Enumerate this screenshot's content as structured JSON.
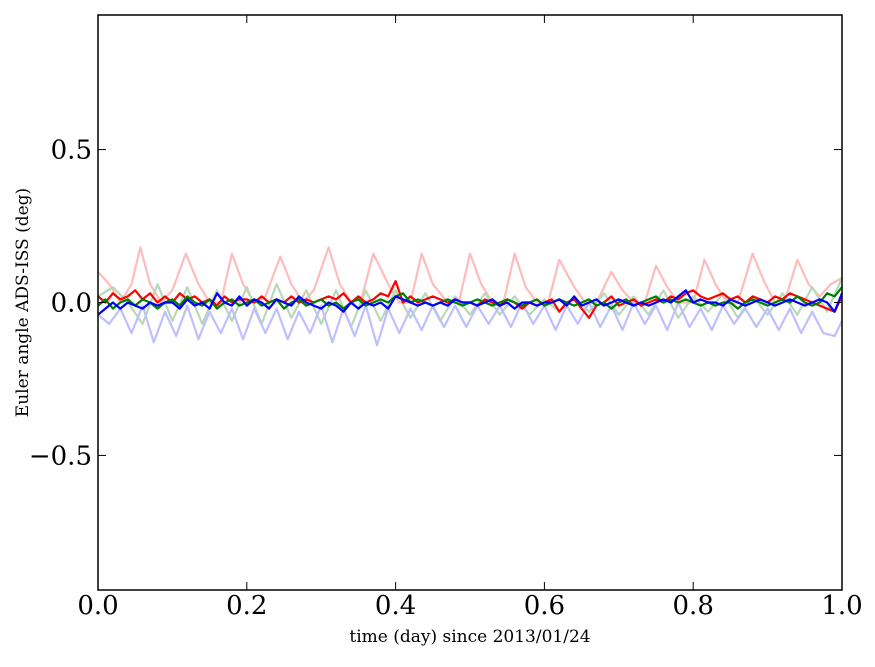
{
  "chart_data": {
    "type": "line",
    "title": "",
    "xlabel": "time (day) since 2013/01/24",
    "ylabel": "Euler angle ADS-ISS (deg)",
    "xlim": [
      0.0,
      1.0
    ],
    "ylim": [
      -0.94,
      0.94
    ],
    "x_ticks": [
      0.0,
      0.2,
      0.4,
      0.6,
      0.8,
      1.0
    ],
    "x_tick_labels": [
      "0.0",
      "0.2",
      "0.4",
      "0.6",
      "0.8",
      "1.0"
    ],
    "y_ticks": [
      -0.5,
      0.0,
      0.5
    ],
    "y_tick_labels": [
      "−0.5",
      "0.0",
      "0.5"
    ],
    "grid": false,
    "legend": "none",
    "series": [
      {
        "color": "#ffbcbc",
        "x": [
          0.0,
          0.015,
          0.03,
          0.045,
          0.057,
          0.07,
          0.085,
          0.1,
          0.118,
          0.135,
          0.15,
          0.165,
          0.18,
          0.195,
          0.21,
          0.225,
          0.245,
          0.26,
          0.275,
          0.29,
          0.31,
          0.325,
          0.34,
          0.355,
          0.37,
          0.39,
          0.405,
          0.42,
          0.435,
          0.45,
          0.47,
          0.485,
          0.5,
          0.515,
          0.53,
          0.545,
          0.56,
          0.575,
          0.59,
          0.605,
          0.62,
          0.64,
          0.655,
          0.67,
          0.69,
          0.705,
          0.72,
          0.735,
          0.75,
          0.765,
          0.78,
          0.8,
          0.815,
          0.83,
          0.845,
          0.86,
          0.88,
          0.895,
          0.91,
          0.925,
          0.94,
          0.955,
          0.97,
          0.985,
          1.0
        ],
        "y": [
          0.1,
          0.06,
          0.0,
          0.06,
          0.18,
          0.06,
          0.0,
          0.04,
          0.16,
          0.06,
          0.0,
          0.0,
          0.16,
          0.06,
          0.0,
          0.02,
          0.15,
          0.06,
          0.0,
          0.04,
          0.18,
          0.06,
          0.0,
          0.02,
          0.16,
          0.06,
          0.0,
          0.0,
          0.16,
          0.06,
          0.0,
          0.0,
          0.16,
          0.06,
          0.0,
          0.0,
          0.16,
          0.05,
          0.0,
          0.0,
          0.14,
          0.05,
          0.0,
          0.0,
          0.1,
          0.04,
          0.0,
          0.0,
          0.12,
          0.05,
          0.0,
          0.0,
          0.14,
          0.06,
          0.0,
          0.0,
          0.16,
          0.07,
          0.0,
          0.02,
          0.14,
          0.06,
          0.02,
          0.06,
          0.08
        ]
      },
      {
        "color": "#b8d8b8",
        "x": [
          0.0,
          0.02,
          0.04,
          0.06,
          0.08,
          0.1,
          0.12,
          0.14,
          0.16,
          0.18,
          0.2,
          0.22,
          0.24,
          0.26,
          0.28,
          0.3,
          0.32,
          0.34,
          0.36,
          0.38,
          0.4,
          0.42,
          0.44,
          0.46,
          0.48,
          0.5,
          0.52,
          0.54,
          0.56,
          0.58,
          0.6,
          0.62,
          0.64,
          0.66,
          0.68,
          0.7,
          0.72,
          0.74,
          0.76,
          0.78,
          0.8,
          0.82,
          0.84,
          0.86,
          0.88,
          0.9,
          0.92,
          0.94,
          0.96,
          0.98,
          1.0
        ],
        "y": [
          0.02,
          0.05,
          0.0,
          -0.07,
          0.06,
          -0.06,
          0.05,
          -0.07,
          0.04,
          -0.06,
          0.05,
          -0.07,
          0.06,
          -0.05,
          0.04,
          -0.07,
          0.04,
          -0.08,
          0.04,
          -0.06,
          0.04,
          -0.05,
          0.03,
          -0.06,
          0.02,
          -0.04,
          0.03,
          -0.04,
          0.02,
          -0.04,
          0.01,
          -0.03,
          0.02,
          -0.03,
          0.03,
          -0.04,
          0.02,
          -0.04,
          0.04,
          -0.05,
          0.02,
          -0.03,
          0.03,
          -0.05,
          0.02,
          -0.04,
          0.03,
          -0.04,
          0.05,
          -0.03,
          0.08
        ]
      },
      {
        "color": "#bfbfff",
        "x": [
          0.0,
          0.015,
          0.03,
          0.045,
          0.06,
          0.075,
          0.09,
          0.105,
          0.12,
          0.135,
          0.15,
          0.165,
          0.18,
          0.195,
          0.21,
          0.225,
          0.24,
          0.255,
          0.27,
          0.285,
          0.3,
          0.315,
          0.33,
          0.345,
          0.36,
          0.375,
          0.39,
          0.405,
          0.42,
          0.435,
          0.45,
          0.465,
          0.48,
          0.495,
          0.51,
          0.525,
          0.54,
          0.555,
          0.57,
          0.585,
          0.6,
          0.615,
          0.63,
          0.645,
          0.66,
          0.675,
          0.69,
          0.705,
          0.72,
          0.735,
          0.75,
          0.765,
          0.78,
          0.795,
          0.81,
          0.825,
          0.84,
          0.855,
          0.87,
          0.885,
          0.9,
          0.915,
          0.93,
          0.945,
          0.96,
          0.975,
          0.99,
          1.0
        ],
        "y": [
          -0.04,
          -0.07,
          -0.02,
          -0.1,
          -0.01,
          -0.13,
          -0.03,
          -0.11,
          -0.01,
          -0.12,
          -0.03,
          -0.1,
          -0.02,
          -0.12,
          -0.02,
          -0.1,
          -0.02,
          -0.12,
          -0.03,
          -0.1,
          -0.01,
          -0.13,
          -0.02,
          -0.11,
          -0.01,
          -0.14,
          -0.02,
          -0.1,
          -0.02,
          -0.09,
          -0.01,
          -0.08,
          -0.01,
          -0.08,
          -0.01,
          -0.07,
          -0.01,
          -0.08,
          0.0,
          -0.07,
          -0.01,
          -0.09,
          -0.01,
          -0.07,
          0.0,
          -0.08,
          -0.01,
          -0.09,
          0.0,
          -0.07,
          -0.01,
          -0.09,
          0.0,
          -0.08,
          -0.02,
          -0.09,
          -0.01,
          -0.07,
          -0.02,
          -0.08,
          -0.02,
          -0.09,
          -0.02,
          -0.1,
          -0.03,
          -0.1,
          -0.11,
          -0.06
        ]
      },
      {
        "color": "#ff0000",
        "x": [
          0.0,
          0.01,
          0.02,
          0.03,
          0.04,
          0.05,
          0.06,
          0.07,
          0.08,
          0.09,
          0.1,
          0.11,
          0.12,
          0.13,
          0.14,
          0.15,
          0.16,
          0.17,
          0.18,
          0.19,
          0.2,
          0.21,
          0.22,
          0.23,
          0.24,
          0.25,
          0.26,
          0.27,
          0.28,
          0.29,
          0.3,
          0.31,
          0.32,
          0.33,
          0.34,
          0.35,
          0.36,
          0.37,
          0.38,
          0.39,
          0.4,
          0.41,
          0.42,
          0.43,
          0.44,
          0.45,
          0.46,
          0.47,
          0.48,
          0.49,
          0.5,
          0.51,
          0.52,
          0.53,
          0.54,
          0.55,
          0.56,
          0.57,
          0.58,
          0.59,
          0.6,
          0.61,
          0.62,
          0.63,
          0.64,
          0.65,
          0.66,
          0.67,
          0.68,
          0.69,
          0.7,
          0.71,
          0.72,
          0.73,
          0.74,
          0.75,
          0.76,
          0.77,
          0.78,
          0.79,
          0.8,
          0.81,
          0.82,
          0.83,
          0.84,
          0.85,
          0.86,
          0.87,
          0.88,
          0.89,
          0.9,
          0.91,
          0.92,
          0.93,
          0.94,
          0.95,
          0.96,
          0.97,
          0.98,
          0.99,
          1.0
        ],
        "y": [
          0.02,
          0.0,
          0.03,
          0.01,
          0.02,
          0.04,
          0.01,
          0.03,
          0.0,
          0.02,
          0.0,
          0.03,
          0.01,
          0.02,
          0.0,
          0.01,
          -0.01,
          0.02,
          0.0,
          0.01,
          0.01,
          0.0,
          0.02,
          0.0,
          0.01,
          0.0,
          0.02,
          0.0,
          0.01,
          0.0,
          0.01,
          0.02,
          0.01,
          0.03,
          0.0,
          0.02,
          0.0,
          0.01,
          0.03,
          0.02,
          0.07,
          0.0,
          0.02,
          0.0,
          0.01,
          0.02,
          0.01,
          0.0,
          0.01,
          0.0,
          0.0,
          -0.01,
          0.01,
          0.0,
          -0.01,
          0.01,
          0.0,
          -0.02,
          0.0,
          -0.01,
          0.0,
          0.01,
          -0.03,
          0.0,
          0.01,
          -0.02,
          -0.05,
          -0.01,
          0.0,
          0.02,
          -0.01,
          0.0,
          0.01,
          -0.01,
          0.0,
          0.01,
          0.0,
          0.02,
          0.01,
          0.03,
          0.04,
          0.02,
          0.01,
          0.02,
          0.03,
          0.01,
          0.02,
          0.0,
          0.02,
          0.01,
          0.0,
          0.02,
          0.01,
          0.03,
          0.02,
          0.01,
          0.0,
          -0.01,
          -0.02,
          -0.03,
          0.02
        ]
      },
      {
        "color": "#008000",
        "x": [
          0.0,
          0.01,
          0.02,
          0.03,
          0.04,
          0.05,
          0.06,
          0.07,
          0.08,
          0.09,
          0.1,
          0.11,
          0.12,
          0.13,
          0.14,
          0.15,
          0.16,
          0.17,
          0.18,
          0.19,
          0.2,
          0.21,
          0.22,
          0.23,
          0.24,
          0.25,
          0.26,
          0.27,
          0.28,
          0.29,
          0.3,
          0.31,
          0.32,
          0.33,
          0.34,
          0.35,
          0.36,
          0.37,
          0.38,
          0.39,
          0.4,
          0.41,
          0.42,
          0.43,
          0.44,
          0.45,
          0.46,
          0.47,
          0.48,
          0.49,
          0.5,
          0.51,
          0.52,
          0.53,
          0.54,
          0.55,
          0.56,
          0.57,
          0.58,
          0.59,
          0.6,
          0.61,
          0.62,
          0.63,
          0.64,
          0.65,
          0.66,
          0.67,
          0.68,
          0.69,
          0.7,
          0.71,
          0.72,
          0.73,
          0.74,
          0.75,
          0.76,
          0.77,
          0.78,
          0.79,
          0.8,
          0.81,
          0.82,
          0.83,
          0.84,
          0.85,
          0.86,
          0.87,
          0.88,
          0.89,
          0.9,
          0.91,
          0.92,
          0.93,
          0.94,
          0.95,
          0.96,
          0.97,
          0.98,
          0.99,
          1.0
        ],
        "y": [
          -0.01,
          0.01,
          -0.02,
          0.0,
          0.01,
          -0.01,
          0.01,
          0.0,
          -0.02,
          0.0,
          0.01,
          -0.01,
          0.02,
          0.0,
          -0.01,
          0.01,
          -0.02,
          0.0,
          0.01,
          -0.01,
          0.0,
          0.01,
          -0.01,
          0.0,
          0.01,
          -0.02,
          0.0,
          0.01,
          -0.01,
          0.0,
          0.01,
          -0.01,
          0.0,
          -0.02,
          0.0,
          0.01,
          -0.01,
          0.0,
          0.01,
          0.0,
          0.02,
          0.03,
          0.0,
          0.01,
          0.0,
          -0.01,
          0.0,
          0.01,
          0.0,
          -0.01,
          0.0,
          0.01,
          0.0,
          -0.01,
          0.0,
          0.01,
          0.0,
          -0.01,
          0.0,
          0.01,
          -0.01,
          0.0,
          0.01,
          0.0,
          -0.01,
          0.0,
          0.01,
          -0.01,
          0.0,
          -0.02,
          0.0,
          0.01,
          -0.01,
          0.0,
          0.01,
          0.02,
          0.0,
          0.01,
          0.0,
          0.01,
          0.0,
          -0.01,
          0.0,
          -0.01,
          0.0,
          0.0,
          -0.02,
          0.0,
          0.01,
          0.0,
          -0.01,
          0.0,
          0.01,
          0.0,
          0.02,
          0.0,
          -0.01,
          0.0,
          0.03,
          0.02,
          0.05
        ]
      },
      {
        "color": "#0000ff",
        "x": [
          0.0,
          0.01,
          0.02,
          0.03,
          0.04,
          0.05,
          0.06,
          0.07,
          0.08,
          0.09,
          0.1,
          0.11,
          0.12,
          0.13,
          0.14,
          0.15,
          0.16,
          0.17,
          0.18,
          0.19,
          0.2,
          0.21,
          0.22,
          0.23,
          0.24,
          0.25,
          0.26,
          0.27,
          0.28,
          0.29,
          0.3,
          0.31,
          0.32,
          0.33,
          0.34,
          0.35,
          0.36,
          0.37,
          0.38,
          0.39,
          0.4,
          0.41,
          0.42,
          0.43,
          0.44,
          0.45,
          0.46,
          0.47,
          0.48,
          0.49,
          0.5,
          0.51,
          0.52,
          0.53,
          0.54,
          0.55,
          0.56,
          0.57,
          0.58,
          0.59,
          0.6,
          0.61,
          0.62,
          0.63,
          0.64,
          0.65,
          0.66,
          0.67,
          0.68,
          0.69,
          0.7,
          0.71,
          0.72,
          0.73,
          0.74,
          0.75,
          0.76,
          0.77,
          0.78,
          0.79,
          0.8,
          0.81,
          0.82,
          0.83,
          0.84,
          0.85,
          0.86,
          0.87,
          0.88,
          0.89,
          0.9,
          0.91,
          0.92,
          0.93,
          0.94,
          0.95,
          0.96,
          0.97,
          0.98,
          0.99,
          1.0
        ],
        "y": [
          -0.04,
          -0.02,
          0.0,
          -0.02,
          0.0,
          -0.01,
          -0.02,
          0.0,
          -0.01,
          0.0,
          0.0,
          -0.02,
          0.01,
          -0.01,
          0.0,
          -0.02,
          0.03,
          0.0,
          -0.01,
          0.02,
          -0.01,
          0.01,
          0.0,
          -0.02,
          0.01,
          0.0,
          -0.01,
          0.02,
          0.0,
          -0.01,
          -0.02,
          0.0,
          -0.01,
          -0.03,
          0.0,
          -0.02,
          0.0,
          -0.01,
          0.0,
          -0.02,
          0.02,
          0.01,
          0.0,
          -0.01,
          0.0,
          -0.01,
          0.0,
          -0.01,
          0.01,
          0.0,
          0.0,
          -0.01,
          0.0,
          0.01,
          -0.01,
          0.0,
          -0.02,
          0.0,
          0.0,
          -0.01,
          0.0,
          0.0,
          0.01,
          -0.01,
          0.02,
          -0.01,
          0.0,
          0.01,
          -0.01,
          0.0,
          0.01,
          0.0,
          -0.01,
          0.0,
          -0.01,
          0.0,
          0.01,
          0.0,
          0.02,
          0.04,
          0.0,
          0.01,
          0.0,
          0.0,
          -0.01,
          0.01,
          0.0,
          -0.01,
          0.0,
          0.01,
          0.0,
          -0.01,
          0.0,
          0.01,
          0.0,
          -0.01,
          0.0,
          0.01,
          0.0,
          -0.03,
          0.03
        ]
      }
    ]
  }
}
